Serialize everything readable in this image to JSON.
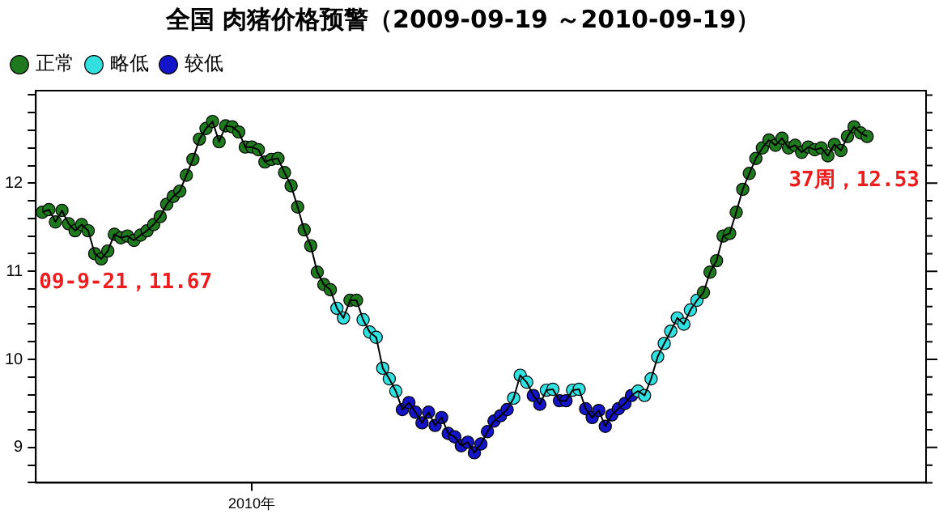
{
  "chart_data": {
    "type": "scatter",
    "title": "全国 肉猪价格预警（2009-09-19 ～2010-09-19）",
    "legend": "top left",
    "grid": false,
    "marker": "circle",
    "categories": [
      null,
      null,
      null,
      null,
      null,
      null,
      null,
      null,
      null,
      null,
      null,
      null,
      null,
      null,
      null,
      null,
      null,
      null,
      null,
      null,
      null,
      null,
      null,
      null,
      null,
      null,
      null,
      null,
      null,
      null,
      null,
      null,
      "2010年",
      null,
      null,
      null,
      null,
      null,
      null,
      null,
      null,
      null,
      null,
      null,
      null,
      null,
      null,
      null,
      null,
      null,
      null,
      null,
      null,
      null,
      null,
      null,
      null,
      null,
      null,
      null,
      null,
      null,
      null,
      null,
      null,
      null,
      null,
      null,
      null,
      null,
      null,
      null,
      null,
      null,
      null,
      null,
      null,
      null,
      null,
      null,
      null,
      null,
      null,
      null,
      null,
      null,
      null,
      null,
      null,
      null,
      null,
      null,
      null,
      null,
      null,
      null,
      null,
      null,
      null,
      null,
      null,
      null,
      null,
      null,
      null,
      null,
      null,
      null,
      null,
      null,
      null,
      null,
      null,
      null,
      null,
      null,
      null,
      null,
      null,
      null,
      null,
      null,
      null,
      null,
      null,
      null,
      null
    ],
    "ylim": [
      8.6,
      13.05
    ],
    "yticks": [
      {
        "value": 8.6,
        "label": null
      },
      {
        "value": 8.8,
        "label": null
      },
      9,
      {
        "value": 9.2,
        "label": null
      },
      {
        "value": 9.4,
        "label": null
      },
      {
        "value": 9.6,
        "label": null
      },
      {
        "value": 9.8,
        "label": null
      },
      10,
      {
        "value": 10.2,
        "label": null
      },
      {
        "value": 10.4,
        "label": null
      },
      {
        "value": 10.6,
        "label": null
      },
      {
        "value": 10.8,
        "label": null
      },
      11,
      {
        "value": 11.2,
        "label": null
      },
      {
        "value": 11.4,
        "label": null
      },
      {
        "value": 11.6,
        "label": null
      },
      {
        "value": 11.8,
        "label": null
      },
      12,
      {
        "value": 12.2,
        "label": null
      },
      {
        "value": 12.4,
        "label": null
      },
      {
        "value": 12.6,
        "label": null
      },
      {
        "value": 12.8,
        "label": null
      },
      {
        "value": 13.0,
        "label": null
      }
    ],
    "annotations": [
      "09-9-21，11.67",
      "37周，12.53"
    ],
    "series": [
      {
        "type": "line",
        "color": "#000000",
        "marker": "none",
        "values": [
          11.67,
          11.7,
          11.56,
          11.69,
          11.54,
          11.46,
          11.53,
          11.46,
          11.2,
          11.14,
          11.23,
          11.42,
          11.38,
          11.4,
          11.35,
          11.41,
          11.46,
          11.53,
          11.62,
          11.76,
          11.85,
          11.91,
          12.09,
          12.27,
          12.5,
          12.62,
          12.7,
          12.47,
          12.65,
          12.64,
          12.58,
          12.41,
          12.41,
          12.38,
          12.24,
          12.27,
          12.28,
          12.12,
          11.97,
          11.73,
          11.47,
          11.29,
          10.99,
          10.85,
          10.79,
          10.58,
          10.47,
          10.67,
          10.67,
          10.45,
          10.31,
          10.25,
          9.9,
          9.78,
          9.64,
          9.43,
          9.51,
          9.4,
          9.28,
          9.4,
          9.25,
          9.34,
          9.16,
          9.12,
          9.02,
          9.06,
          8.94,
          9.04,
          9.18,
          9.3,
          9.36,
          9.43,
          9.56,
          9.82,
          9.74,
          9.59,
          9.49,
          9.65,
          9.66,
          9.53,
          9.53,
          9.65,
          9.66,
          9.44,
          9.34,
          9.42,
          9.24,
          9.37,
          9.44,
          9.5,
          9.59,
          9.64,
          9.59,
          9.78,
          10.03,
          10.18,
          10.32,
          10.47,
          10.4,
          10.56,
          10.67,
          10.76,
          10.99,
          11.12,
          11.4,
          11.43,
          11.67,
          11.93,
          12.11,
          12.28,
          12.4,
          12.49,
          12.43,
          12.51,
          12.4,
          12.43,
          12.35,
          12.41,
          12.38,
          12.4,
          12.31,
          12.44,
          12.37,
          12.53,
          12.64,
          12.57,
          12.53
        ]
      },
      {
        "type": "scatter",
        "name": "正常",
        "color": "#1f7a1f",
        "values": [
          11.67,
          11.7,
          11.56,
          11.69,
          11.54,
          11.46,
          11.53,
          11.46,
          11.2,
          11.14,
          11.23,
          11.42,
          11.38,
          11.4,
          11.35,
          11.41,
          11.46,
          11.53,
          11.62,
          11.76,
          11.85,
          11.91,
          12.09,
          12.27,
          12.5,
          12.62,
          12.7,
          12.47,
          12.65,
          12.64,
          12.58,
          12.41,
          12.41,
          12.38,
          12.24,
          12.27,
          12.28,
          12.12,
          11.97,
          11.73,
          11.47,
          11.29,
          10.99,
          10.85,
          10.79,
          null,
          null,
          10.67,
          10.67,
          null,
          null,
          null,
          null,
          null,
          null,
          null,
          null,
          null,
          null,
          null,
          null,
          null,
          null,
          null,
          null,
          null,
          null,
          null,
          null,
          null,
          null,
          null,
          null,
          null,
          null,
          null,
          null,
          null,
          null,
          null,
          null,
          null,
          null,
          null,
          null,
          null,
          null,
          null,
          null,
          null,
          null,
          null,
          null,
          null,
          null,
          null,
          null,
          null,
          null,
          null,
          null,
          10.76,
          10.99,
          11.12,
          11.4,
          11.43,
          11.67,
          11.93,
          12.11,
          12.28,
          12.4,
          12.49,
          12.43,
          12.51,
          12.4,
          12.43,
          12.35,
          12.41,
          12.38,
          12.4,
          12.31,
          12.44,
          12.37,
          12.53,
          12.64,
          12.57,
          12.53
        ]
      },
      {
        "type": "scatter",
        "name": "略低",
        "color": "#33e0e0",
        "values": [
          null,
          null,
          null,
          null,
          null,
          null,
          null,
          null,
          null,
          null,
          null,
          null,
          null,
          null,
          null,
          null,
          null,
          null,
          null,
          null,
          null,
          null,
          null,
          null,
          null,
          null,
          null,
          null,
          null,
          null,
          null,
          null,
          null,
          null,
          null,
          null,
          null,
          null,
          null,
          null,
          null,
          null,
          null,
          null,
          null,
          10.58,
          10.47,
          null,
          null,
          10.45,
          10.31,
          10.25,
          9.9,
          9.78,
          9.64,
          null,
          null,
          null,
          null,
          null,
          null,
          null,
          null,
          null,
          null,
          null,
          null,
          null,
          null,
          null,
          null,
          null,
          9.56,
          9.82,
          9.74,
          null,
          null,
          9.65,
          9.66,
          null,
          null,
          9.65,
          9.66,
          null,
          null,
          null,
          null,
          null,
          null,
          null,
          null,
          9.64,
          9.59,
          9.78,
          10.03,
          10.18,
          10.32,
          10.47,
          10.4,
          10.56,
          10.67,
          null,
          null,
          null,
          null,
          null,
          null,
          null,
          null,
          null,
          null,
          null,
          null,
          null,
          null,
          null,
          null,
          null,
          null,
          null,
          null,
          null,
          null,
          null,
          null,
          null,
          null
        ]
      },
      {
        "type": "scatter",
        "name": "较低",
        "color": "#1414c8",
        "values": [
          null,
          null,
          null,
          null,
          null,
          null,
          null,
          null,
          null,
          null,
          null,
          null,
          null,
          null,
          null,
          null,
          null,
          null,
          null,
          null,
          null,
          null,
          null,
          null,
          null,
          null,
          null,
          null,
          null,
          null,
          null,
          null,
          null,
          null,
          null,
          null,
          null,
          null,
          null,
          null,
          null,
          null,
          null,
          null,
          null,
          null,
          null,
          null,
          null,
          null,
          null,
          null,
          null,
          null,
          null,
          9.43,
          9.51,
          9.4,
          9.28,
          9.4,
          9.25,
          9.34,
          9.16,
          9.12,
          9.02,
          9.06,
          8.94,
          9.04,
          9.18,
          9.3,
          9.36,
          9.43,
          null,
          null,
          null,
          9.59,
          9.49,
          null,
          null,
          9.53,
          9.53,
          null,
          null,
          9.44,
          9.34,
          9.42,
          9.24,
          9.37,
          9.44,
          9.5,
          9.59,
          null,
          null,
          null,
          null,
          null,
          null,
          null,
          null,
          null,
          null,
          null,
          null,
          null,
          null,
          null,
          null,
          null,
          null,
          null,
          null,
          null,
          null,
          null,
          null,
          null,
          null,
          null,
          null,
          null,
          null,
          null,
          null,
          null,
          null,
          null,
          null
        ]
      }
    ]
  }
}
